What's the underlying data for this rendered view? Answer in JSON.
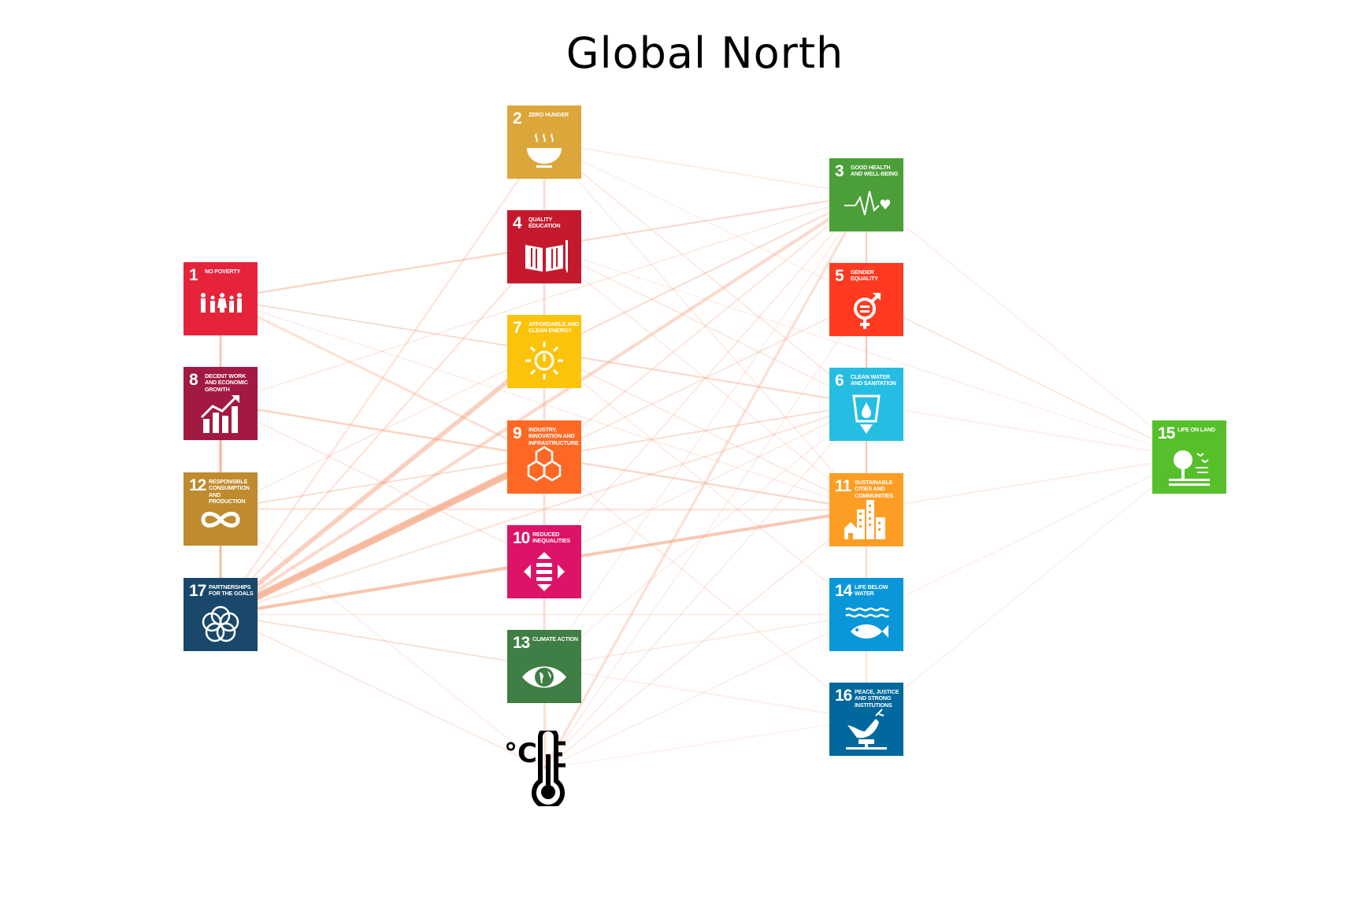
{
  "title": "Global North",
  "edge_color": "#f4a582",
  "nodes": [
    {
      "id": "1",
      "num": "1",
      "label": "No Poverty",
      "color": "#e5243b",
      "icon": "people-icon"
    },
    {
      "id": "2",
      "num": "2",
      "label": "Zero Hunger",
      "color": "#dda63a",
      "icon": "bowl-icon"
    },
    {
      "id": "3",
      "num": "3",
      "label": "Good Health and Well-Being",
      "color": "#4c9f38",
      "icon": "heartbeat-icon"
    },
    {
      "id": "4",
      "num": "4",
      "label": "Quality Education",
      "color": "#c5192d",
      "icon": "book-icon"
    },
    {
      "id": "5",
      "num": "5",
      "label": "Gender Equality",
      "color": "#ff3a21",
      "icon": "gender-icon"
    },
    {
      "id": "6",
      "num": "6",
      "label": "Clean Water and Sanitation",
      "color": "#26bde2",
      "icon": "water-icon"
    },
    {
      "id": "7",
      "num": "7",
      "label": "Affordable and Clean Energy",
      "color": "#fcc30b",
      "icon": "sun-power-icon"
    },
    {
      "id": "8",
      "num": "8",
      "label": "Decent Work and Economic Growth",
      "color": "#a21942",
      "icon": "growth-chart-icon"
    },
    {
      "id": "9",
      "num": "9",
      "label": "Industry, Innovation and Infrastructure",
      "color": "#fd6925",
      "icon": "cubes-icon"
    },
    {
      "id": "10",
      "num": "10",
      "label": "Reduced Inequalities",
      "color": "#dd1367",
      "icon": "arrows-icon"
    },
    {
      "id": "11",
      "num": "11",
      "label": "Sustainable Cities and Communities",
      "color": "#fd9d24",
      "icon": "city-icon"
    },
    {
      "id": "12",
      "num": "12",
      "label": "Responsible Consumption and Production",
      "color": "#bf8b2e",
      "icon": "infinity-icon"
    },
    {
      "id": "13",
      "num": "13",
      "label": "Climate Action",
      "color": "#3f7e44",
      "icon": "eye-globe-icon"
    },
    {
      "id": "14",
      "num": "14",
      "label": "Life Below Water",
      "color": "#0a97d9",
      "icon": "fish-icon"
    },
    {
      "id": "15",
      "num": "15",
      "label": "Life on Land",
      "color": "#56c02b",
      "icon": "tree-icon"
    },
    {
      "id": "16",
      "num": "16",
      "label": "Peace, Justice and Strong Institutions",
      "color": "#00689d",
      "icon": "dove-icon"
    },
    {
      "id": "17",
      "num": "17",
      "label": "Partnerships for the Goals",
      "color": "#19486a",
      "icon": "rings-icon"
    }
  ],
  "thermometer": {
    "unit": "°C",
    "icon": "thermometer-icon"
  },
  "edges": [
    [
      "17",
      "9",
      1.0
    ],
    [
      "17",
      "7",
      0.62
    ],
    [
      "17",
      "3",
      0.42
    ],
    [
      "17",
      "11",
      0.42
    ],
    [
      "17",
      "10",
      0.38
    ],
    [
      "17",
      "2",
      0.2
    ],
    [
      "17",
      "4",
      0.2
    ],
    [
      "17",
      "6",
      0.18
    ],
    [
      "17",
      "5",
      0.16
    ],
    [
      "17",
      "1",
      0.14
    ],
    [
      "17",
      "8",
      0.22
    ],
    [
      "17",
      "12",
      0.25
    ],
    [
      "17",
      "13",
      0.1
    ],
    [
      "17",
      "T",
      0.12
    ],
    [
      "17",
      "14",
      0.1
    ],
    [
      "17",
      "16",
      0.08
    ],
    [
      "1",
      "8",
      0.32
    ],
    [
      "8",
      "12",
      0.45
    ],
    [
      "12",
      "17",
      0.32
    ],
    [
      "1",
      "12",
      0.14
    ],
    [
      "1",
      "4",
      0.22
    ],
    [
      "1",
      "9",
      0.28
    ],
    [
      "1",
      "3",
      0.14
    ],
    [
      "1",
      "6",
      0.12
    ],
    [
      "1",
      "7",
      0.1
    ],
    [
      "1",
      "11",
      0.08
    ],
    [
      "8",
      "9",
      0.25
    ],
    [
      "8",
      "11",
      0.12
    ],
    [
      "8",
      "3",
      0.1
    ],
    [
      "8",
      "10",
      0.12
    ],
    [
      "12",
      "11",
      0.2
    ],
    [
      "12",
      "9",
      0.12
    ],
    [
      "12",
      "T",
      0.08
    ],
    [
      "12",
      "3",
      0.1
    ],
    [
      "12",
      "6",
      0.08
    ],
    [
      "2",
      "4",
      0.3
    ],
    [
      "4",
      "7",
      0.3
    ],
    [
      "7",
      "9",
      0.3
    ],
    [
      "9",
      "10",
      0.3
    ],
    [
      "10",
      "13",
      0.3
    ],
    [
      "13",
      "T",
      0.3
    ],
    [
      "2",
      "3",
      0.1
    ],
    [
      "2",
      "15",
      0.06
    ],
    [
      "2",
      "11",
      0.1
    ],
    [
      "2",
      "6",
      0.12
    ],
    [
      "4",
      "6",
      0.12
    ],
    [
      "4",
      "11",
      0.1
    ],
    [
      "4",
      "3",
      0.14
    ],
    [
      "4",
      "15",
      0.06
    ],
    [
      "7",
      "6",
      0.16
    ],
    [
      "7",
      "3",
      0.14
    ],
    [
      "7",
      "11",
      0.12
    ],
    [
      "7",
      "14",
      0.1
    ],
    [
      "9",
      "11",
      0.2
    ],
    [
      "9",
      "3",
      0.16
    ],
    [
      "9",
      "6",
      0.14
    ],
    [
      "9",
      "16",
      0.1
    ],
    [
      "10",
      "11",
      0.3
    ],
    [
      "10",
      "3",
      0.12
    ],
    [
      "10",
      "6",
      0.1
    ],
    [
      "13",
      "6",
      0.08
    ],
    [
      "13",
      "14",
      0.1
    ],
    [
      "13",
      "3",
      0.08
    ],
    [
      "T",
      "3",
      0.3
    ],
    [
      "T",
      "11",
      0.12
    ],
    [
      "T",
      "6",
      0.1
    ],
    [
      "T",
      "5",
      0.08
    ],
    [
      "T",
      "14",
      0.08
    ],
    [
      "T",
      "16",
      0.06
    ],
    [
      "3",
      "5",
      0.2
    ],
    [
      "5",
      "6",
      0.2
    ],
    [
      "6",
      "11",
      0.2
    ],
    [
      "11",
      "14",
      0.2
    ],
    [
      "14",
      "16",
      0.2
    ],
    [
      "3",
      "15",
      0.08
    ],
    [
      "6",
      "15",
      0.08
    ],
    [
      "11",
      "15",
      0.1
    ],
    [
      "14",
      "15",
      0.06
    ],
    [
      "16",
      "15",
      0.06
    ],
    [
      "5",
      "15",
      0.05
    ],
    [
      "3",
      "11",
      0.12
    ],
    [
      "5",
      "11",
      0.08
    ],
    [
      "6",
      "14",
      0.08
    ],
    [
      "3",
      "6",
      0.08
    ]
  ]
}
